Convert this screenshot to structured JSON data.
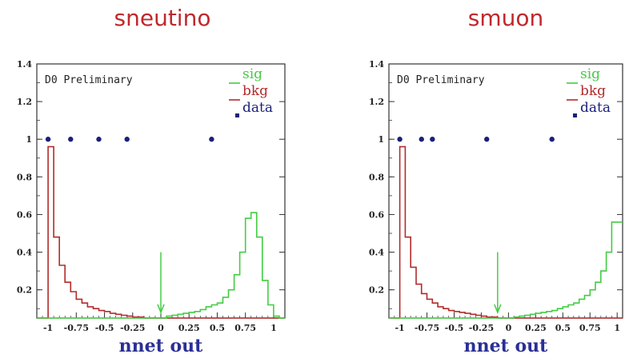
{
  "colors": {
    "title": "#c0282d",
    "xlabel": "#2a2f96",
    "sig": "#44cc44",
    "bkg": "#b22b2b",
    "data": "#1a1f7a",
    "arrow": "#44cc44"
  },
  "chart_data": [
    {
      "type": "histogram",
      "title": "sneutino",
      "xlabel": "nnet out",
      "annotation": "D0 Preliminary",
      "xlim": [
        -1.1,
        1.1
      ],
      "ylim": [
        0.05,
        1.4
      ],
      "xticks": [
        "-1",
        "-0.75",
        "-0.5",
        "-0.25",
        "0",
        "0.25",
        "0.5",
        "0.75",
        "1"
      ],
      "xtick_values": [
        -1,
        -0.75,
        -0.5,
        -0.25,
        0,
        0.25,
        0.5,
        0.75,
        1
      ],
      "yticks": [
        "0.2",
        "0.4",
        "0.6",
        "0.8",
        "1",
        "1.2",
        "1.4"
      ],
      "ytick_values": [
        0.2,
        0.4,
        0.6,
        0.8,
        1,
        1.2,
        1.4
      ],
      "legend": [
        {
          "label": "sig",
          "series": "sig"
        },
        {
          "label": "bkg",
          "series": "bkg"
        },
        {
          "label": "data",
          "series": "data"
        }
      ],
      "bin_edges_start": -1.1,
      "bin_width": 0.05,
      "series": [
        {
          "name": "bkg",
          "values": [
            0.05,
            0.05,
            0.96,
            0.48,
            0.33,
            0.24,
            0.19,
            0.15,
            0.13,
            0.11,
            0.1,
            0.09,
            0.085,
            0.075,
            0.07,
            0.065,
            0.06,
            0.055,
            0.055,
            0.05,
            0.05,
            0.05,
            0.05,
            0.05,
            0.05,
            0.05,
            0.05,
            0.05,
            0.05,
            0.05,
            0.05,
            0.05,
            0.05,
            0.05,
            0.05,
            0.05,
            0.05,
            0.05,
            0.05,
            0.05,
            0.05,
            0.05,
            0.05,
            0.05
          ]
        },
        {
          "name": "sig",
          "values": [
            0.05,
            0.05,
            0.05,
            0.05,
            0.05,
            0.05,
            0.05,
            0.05,
            0.05,
            0.05,
            0.05,
            0.05,
            0.05,
            0.05,
            0.05,
            0.05,
            0.05,
            0.05,
            0.05,
            0.05,
            0.05,
            0.05,
            0.05,
            0.06,
            0.065,
            0.07,
            0.075,
            0.08,
            0.085,
            0.095,
            0.11,
            0.12,
            0.13,
            0.16,
            0.2,
            0.28,
            0.4,
            0.58,
            0.61,
            0.48,
            0.25,
            0.12,
            0.06,
            0.05
          ]
        }
      ],
      "data_points": [
        {
          "x": -1.0,
          "y": 1.0
        },
        {
          "x": -0.8,
          "y": 1.0
        },
        {
          "x": -0.55,
          "y": 1.0
        },
        {
          "x": -0.3,
          "y": 1.0
        },
        {
          "x": 0.45,
          "y": 1.0
        }
      ],
      "arrow": {
        "x": 0.0,
        "y_top": 0.4,
        "y_bottom": 0.08
      }
    },
    {
      "type": "histogram",
      "title": "smuon",
      "xlabel": "nnet out",
      "annotation": "D0 Preliminary",
      "xlim": [
        -1.1,
        1.05
      ],
      "ylim": [
        0.05,
        1.4
      ],
      "xticks": [
        "-1",
        "-0.75",
        "-0.5",
        "-0.25",
        "0",
        "0.25",
        "0.5",
        "0.75",
        "1"
      ],
      "xtick_values": [
        -1,
        -0.75,
        -0.5,
        -0.25,
        0,
        0.25,
        0.5,
        0.75,
        1
      ],
      "yticks": [
        "0.2",
        "0.4",
        "0.6",
        "0.8",
        "1",
        "1.2",
        "1.4"
      ],
      "ytick_values": [
        0.2,
        0.4,
        0.6,
        0.8,
        1,
        1.2,
        1.4
      ],
      "legend": [
        {
          "label": "sig",
          "series": "sig"
        },
        {
          "label": "bkg",
          "series": "bkg"
        },
        {
          "label": "data",
          "series": "data"
        }
      ],
      "bin_edges_start": -1.1,
      "bin_width": 0.05,
      "series": [
        {
          "name": "bkg",
          "values": [
            0.05,
            0.05,
            0.96,
            0.48,
            0.32,
            0.23,
            0.18,
            0.15,
            0.13,
            0.11,
            0.1,
            0.09,
            0.085,
            0.08,
            0.075,
            0.07,
            0.065,
            0.06,
            0.055,
            0.055,
            0.05,
            0.05,
            0.05,
            0.05,
            0.05,
            0.05,
            0.05,
            0.05,
            0.05,
            0.05,
            0.05,
            0.05,
            0.05,
            0.05,
            0.05,
            0.05,
            0.05,
            0.05,
            0.05,
            0.05,
            0.05,
            0.05,
            0.05
          ]
        },
        {
          "name": "sig",
          "values": [
            0.05,
            0.05,
            0.05,
            0.05,
            0.05,
            0.05,
            0.05,
            0.05,
            0.05,
            0.05,
            0.05,
            0.05,
            0.05,
            0.05,
            0.05,
            0.05,
            0.05,
            0.05,
            0.05,
            0.05,
            0.05,
            0.05,
            0.05,
            0.055,
            0.06,
            0.065,
            0.07,
            0.075,
            0.08,
            0.085,
            0.09,
            0.1,
            0.11,
            0.12,
            0.13,
            0.15,
            0.17,
            0.2,
            0.24,
            0.3,
            0.4,
            0.56,
            0.56
          ]
        }
      ],
      "data_points": [
        {
          "x": -1.0,
          "y": 1.0
        },
        {
          "x": -0.8,
          "y": 1.0
        },
        {
          "x": -0.7,
          "y": 1.0
        },
        {
          "x": -0.2,
          "y": 1.0
        },
        {
          "x": 0.4,
          "y": 1.0
        }
      ],
      "arrow": {
        "x": -0.1,
        "y_top": 0.4,
        "y_bottom": 0.08
      }
    }
  ]
}
